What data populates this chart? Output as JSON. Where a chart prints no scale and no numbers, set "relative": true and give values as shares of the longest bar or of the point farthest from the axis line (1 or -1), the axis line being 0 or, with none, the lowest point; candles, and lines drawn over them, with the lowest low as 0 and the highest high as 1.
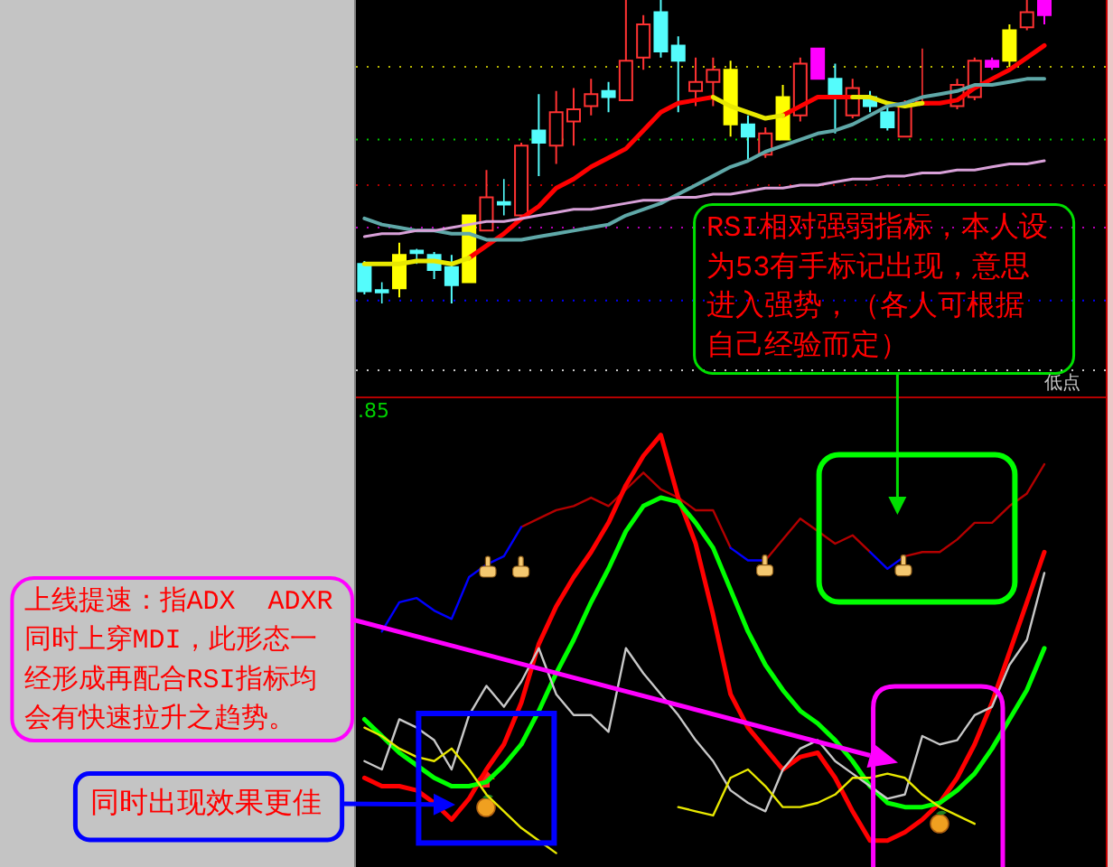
{
  "chart_data": [
    {
      "type": "candlestick",
      "relative": true,
      "categories": [
        null,
        null,
        null,
        null,
        null,
        null,
        null,
        null,
        null,
        null,
        null,
        null,
        null,
        null,
        null,
        null,
        null,
        null,
        null,
        null,
        null,
        null,
        null,
        null,
        null,
        null,
        null,
        null,
        null,
        null,
        null,
        null,
        null,
        null,
        null,
        null,
        null,
        null,
        null,
        null
      ],
      "ohlc": [
        [
          0.13,
          0.14,
          0.03,
          0.04
        ],
        [
          0.04,
          0.07,
          0,
          0.04
        ],
        [
          0.16,
          0.2,
          0.02,
          0.05
        ],
        [
          0.17,
          0.18,
          0.13,
          0.17
        ],
        [
          0.16,
          0.17,
          0.08,
          0.11
        ],
        [
          0.12,
          0.16,
          0,
          0.06
        ],
        [
          0.29,
          0.29,
          0.07,
          0.07
        ],
        [
          0.24,
          0.44,
          0.24,
          0.35
        ],
        [
          0.33,
          0.41,
          0.29,
          0.33
        ],
        [
          0.29,
          0.53,
          0.28,
          0.52
        ],
        [
          0.57,
          0.69,
          0.42,
          0.53
        ],
        [
          0.52,
          0.7,
          0.46,
          0.63
        ],
        [
          0.6,
          0.71,
          0.52,
          0.64
        ],
        [
          0.65,
          0.74,
          0.62,
          0.69
        ],
        [
          0.7,
          0.73,
          0.63,
          0.68
        ],
        [
          0.67,
          1,
          0.67,
          0.8
        ],
        [
          0.81,
          0.95,
          0.77,
          0.92
        ],
        [
          0.96,
          1,
          0.81,
          0.83
        ],
        [
          0.85,
          0.88,
          0.63,
          0.8
        ],
        [
          0.7,
          0.81,
          0.65,
          0.73
        ],
        [
          0.73,
          0.81,
          0.65,
          0.77
        ],
        [
          0.77,
          0.8,
          0.55,
          0.59
        ],
        [
          0.59,
          0.62,
          0.47,
          0.55
        ],
        [
          0.49,
          0.58,
          0.48,
          0.56
        ],
        [
          0.68,
          0.72,
          0.54,
          0.54
        ],
        [
          0.62,
          0.81,
          0.6,
          0.79
        ],
        [
          0.84,
          0.84,
          0.74,
          0.74
        ],
        [
          0.74,
          0.79,
          0.56,
          0.69
        ],
        [
          0.62,
          0.74,
          0.61,
          0.71
        ],
        [
          0.68,
          0.7,
          0.63,
          0.65
        ],
        [
          0.63,
          0.65,
          0.57,
          0.58
        ],
        [
          0.55,
          0.67,
          0.55,
          0.65
        ],
        [
          0.66,
          0.84,
          0.66,
          0.66
        ],
        null,
        [
          0.65,
          0.74,
          0.64,
          0.72
        ],
        [
          0.68,
          0.81,
          0.67,
          0.8
        ],
        [
          0.8,
          0.81,
          0.77,
          0.78
        ],
        [
          0.9,
          0.92,
          0.78,
          0.8
        ],
        [
          0.91,
          1,
          0.9,
          0.96
        ],
        [
          1,
          1,
          0.92,
          0.95
        ]
      ],
      "colors": [
        "#54fcfc",
        "#54fcfc",
        "#ffff00",
        "#54fcfc",
        "#54fcfc",
        "#54fcfc",
        "#ffff00",
        "#ff3232",
        "#54fcfc",
        "#ff3232",
        "#54fcfc",
        "#ff3232",
        "#ff3232",
        "#ff3232",
        "#54fcfc",
        "#ff3232",
        "#ff3232",
        "#54fcfc",
        "#54fcfc",
        "#ff3232",
        "#ff3232",
        "#ffff00",
        "#54fcfc",
        "#ff3232",
        "#ffff00",
        "#ff3232",
        "#ff00ff",
        "#54fcfc",
        "#ff3232",
        "#54fcfc",
        "#54fcfc",
        "#ff3232",
        "#ff3232",
        null,
        "#ff3232",
        "#ff3232",
        "#ff00ff",
        "#ffff00",
        "#ff3232",
        "#ff00ff"
      ],
      "series": [
        {
          "type": "line",
          "color": "#ff0000",
          "values": [
            null,
            null,
            null,
            null,
            null,
            null,
            0.15,
            0.19,
            0.23,
            0.28,
            0.32,
            0.38,
            0.41,
            0.45,
            0.48,
            0.51,
            0.57,
            0.63,
            0.66,
            0.67,
            0.68,
            null,
            null,
            null,
            0.62,
            0.65,
            0.68,
            0.68,
            0.68,
            null,
            null,
            null,
            0.66,
            0.66,
            0.67,
            0.71,
            0.74,
            0.77,
            0.81,
            0.85
          ]
        },
        {
          "type": "line",
          "color": "#e8e800",
          "values": [
            0.13,
            0.13,
            0.13,
            0.14,
            0.14,
            0.13,
            0.15,
            null,
            null,
            null,
            null,
            null,
            null,
            null,
            null,
            null,
            null,
            null,
            null,
            null,
            0.68,
            0.65,
            0.63,
            0.61,
            0.62,
            null,
            null,
            null,
            0.68,
            0.68,
            0.66,
            0.65,
            0.66,
            null,
            null,
            null,
            null,
            null,
            null,
            null
          ]
        },
        {
          "type": "line",
          "color": "#5fa8a8",
          "values": [
            0.28,
            0.26,
            0.25,
            0.24,
            0.24,
            0.23,
            0.23,
            0.21,
            0.21,
            0.21,
            0.22,
            0.23,
            0.24,
            0.25,
            0.26,
            0.29,
            0.31,
            0.33,
            0.36,
            0.39,
            0.42,
            0.45,
            0.47,
            0.5,
            0.52,
            0.54,
            0.56,
            0.57,
            0.59,
            0.62,
            0.65,
            0.66,
            0.68,
            0.69,
            0.7,
            0.72,
            0.72,
            0.73,
            0.74,
            0.74
          ]
        },
        {
          "type": "line",
          "color": "#d8a0d8",
          "values": [
            0.22,
            0.23,
            0.23,
            0.24,
            0.24,
            0.25,
            0.26,
            0.27,
            0.27,
            0.28,
            0.29,
            0.3,
            0.31,
            0.31,
            0.32,
            0.33,
            0.34,
            0.34,
            0.35,
            0.35,
            0.36,
            0.36,
            0.37,
            0.38,
            0.38,
            0.39,
            0.39,
            0.4,
            0.41,
            0.41,
            0.42,
            0.42,
            0.43,
            0.43,
            0.44,
            0.44,
            0.45,
            0.46,
            0.46,
            0.47
          ]
        }
      ],
      "ref_lines": [
        {
          "axis": "y",
          "value": 0.78,
          "color": "#b4b400",
          "line_style": "dotted"
        },
        {
          "axis": "y",
          "value": 0.54,
          "color": "#00c800",
          "line_style": "dotted"
        },
        {
          "axis": "y",
          "value": 0.39,
          "color": "#b40000",
          "line_style": "dotted"
        },
        {
          "axis": "y",
          "value": 0.25,
          "color": "#b400b4",
          "line_style": "dotted"
        },
        {
          "axis": "y",
          "value": 0.01,
          "color": "#0000ff",
          "line_style": "dotted"
        },
        {
          "axis": "y",
          "value": -0.22,
          "color": "#c8c8c8",
          "line_style": "dotted"
        }
      ],
      "annotations": [
        "RSI相对强弱指标，本人设为53有手标记出现，意思进入强势，（各人可根据自己经验而定）",
        "低点"
      ]
    },
    {
      "type": "line",
      "relative": true,
      "categories": [
        null,
        null,
        null,
        null,
        null,
        null,
        null,
        null,
        null,
        null,
        null,
        null,
        null,
        null,
        null,
        null,
        null,
        null,
        null,
        null,
        null,
        null,
        null,
        null,
        null,
        null,
        null,
        null,
        null,
        null,
        null,
        null,
        null,
        null,
        null,
        null,
        null,
        null,
        null,
        null
      ],
      "series": [
        {
          "color": "#b40000",
          "values": [
            null,
            null,
            null,
            null,
            null,
            null,
            null,
            null,
            null,
            0.78,
            0.8,
            0.82,
            0.83,
            0.85,
            0.83,
            0.87,
            0.91,
            0.87,
            0.85,
            0.82,
            0.82,
            0.73,
            null,
            0.7,
            0.75,
            0.8,
            0.77,
            0.74,
            0.76,
            0.72,
            null,
            0.71,
            0.72,
            0.72,
            0.75,
            0.79,
            0.79,
            0.83,
            0.86,
            0.93
          ]
        },
        {
          "color": "#0000ff",
          "values": [
            null,
            0.53,
            0.6,
            0.61,
            0.58,
            0.56,
            0.66,
            0.69,
            0.71,
            0.78,
            null,
            null,
            null,
            null,
            null,
            null,
            null,
            null,
            null,
            null,
            null,
            0.73,
            0.7,
            0.7,
            null,
            null,
            null,
            null,
            null,
            0.72,
            0.68,
            0.71,
            null,
            null,
            null,
            null,
            null,
            null,
            null,
            null
          ]
        },
        {
          "color": "#ff0000",
          "values": [
            0.18,
            0.16,
            0.16,
            0.15,
            0.12,
            0.08,
            0.13,
            0.2,
            0.26,
            0.36,
            0.5,
            0.59,
            0.66,
            0.72,
            0.79,
            0.88,
            0.95,
            1,
            0.85,
            0.74,
            0.57,
            0.38,
            0.3,
            0.25,
            0.2,
            0.23,
            0.24,
            0.18,
            0.1,
            0.03,
            0.03,
            0.05,
            0.08,
            0.12,
            0.18,
            0.26,
            0.36,
            0.48,
            0.6,
            0.72
          ]
        },
        {
          "color": "#00ff00",
          "values": [
            0.32,
            0.28,
            0.24,
            0.21,
            0.18,
            0.16,
            0.16,
            0.17,
            0.21,
            0.26,
            0.34,
            0.43,
            0.51,
            0.6,
            0.68,
            0.77,
            0.83,
            0.85,
            0.84,
            0.79,
            0.73,
            0.63,
            0.53,
            0.45,
            0.39,
            0.34,
            0.31,
            0.27,
            0.22,
            0.16,
            0.12,
            0.11,
            0.11,
            0.12,
            0.15,
            0.19,
            0.25,
            0.32,
            0.39,
            0.49
          ]
        },
        {
          "color": "#c8c8c8",
          "values": [
            0.22,
            0.2,
            0.32,
            0.3,
            0.27,
            0.2,
            0.33,
            0.4,
            0.35,
            0.41,
            0.49,
            0.38,
            0.33,
            0.33,
            0.29,
            0.49,
            0.43,
            0.38,
            0.33,
            0.27,
            0.22,
            0.15,
            0.12,
            0.1,
            0.2,
            0.25,
            0.27,
            0.22,
            0.19,
            0.16,
            0.13,
            0.14,
            0.28,
            0.26,
            0.27,
            0.33,
            0.35,
            0.45,
            0.51,
            0.67
          ]
        },
        {
          "color": "#e8e800",
          "values": [
            0.3,
            0.28,
            0.25,
            0.23,
            0.22,
            0.25,
            0.2,
            0.14,
            0.1,
            0.06,
            0.03,
            0,
            null,
            null,
            null,
            null,
            null,
            null,
            0.11,
            0.1,
            0.09,
            0.18,
            0.2,
            0.16,
            0.11,
            0.11,
            0.12,
            0.14,
            0.18,
            0.18,
            0.19,
            0.18,
            0.14,
            0.11,
            0.09,
            0.07,
            null,
            null,
            null,
            null
          ]
        }
      ],
      "annotations": [
        ".85",
        "上线提速：指ADX  ADXR同时上穿MDI，此形态一经形成再配合RSI指标均会有快速拉升之趋势。",
        "同时出现效果更佳"
      ]
    }
  ]
}
